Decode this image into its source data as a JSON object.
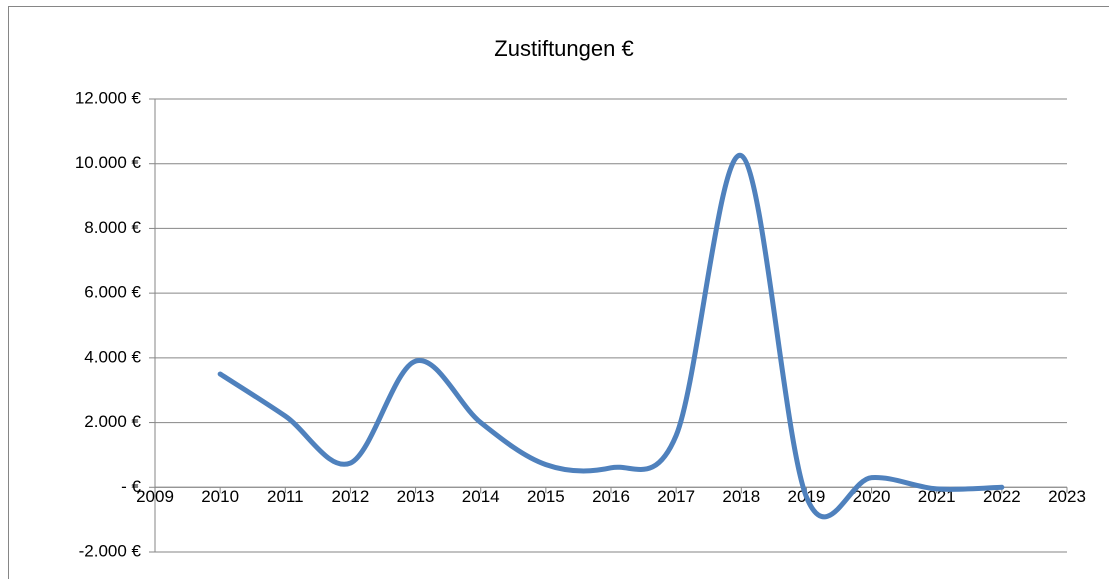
{
  "chart_data": {
    "type": "line",
    "title": "Zustiftungen €",
    "x": [
      2010,
      2011,
      2012,
      2013,
      2014,
      2015,
      2016,
      2017,
      2018,
      2019,
      2020,
      2021,
      2022
    ],
    "series": [
      {
        "name": "Zustiftungen €",
        "color": "#4f81bd",
        "values": [
          3500,
          2200,
          750,
          3900,
          2000,
          700,
          600,
          1600,
          10250,
          -300,
          300,
          -50,
          0
        ]
      }
    ],
    "xlim": [
      2009,
      2023
    ],
    "xticks": [
      2009,
      2010,
      2011,
      2012,
      2013,
      2014,
      2015,
      2016,
      2017,
      2018,
      2019,
      2020,
      2021,
      2022,
      2023
    ],
    "ylim": [
      -2000,
      12000
    ],
    "yticks": [
      {
        "value": -2000,
        "label": "-2.000 €"
      },
      {
        "value": 0,
        "label": "- €"
      },
      {
        "value": 2000,
        "label": "2.000 €"
      },
      {
        "value": 4000,
        "label": "4.000 €"
      },
      {
        "value": 6000,
        "label": "6.000 €"
      },
      {
        "value": 8000,
        "label": "8.000 €"
      },
      {
        "value": 10000,
        "label": "10.000 €"
      },
      {
        "value": 12000,
        "label": "12.000 €"
      }
    ],
    "grid": true,
    "smooth": true
  }
}
